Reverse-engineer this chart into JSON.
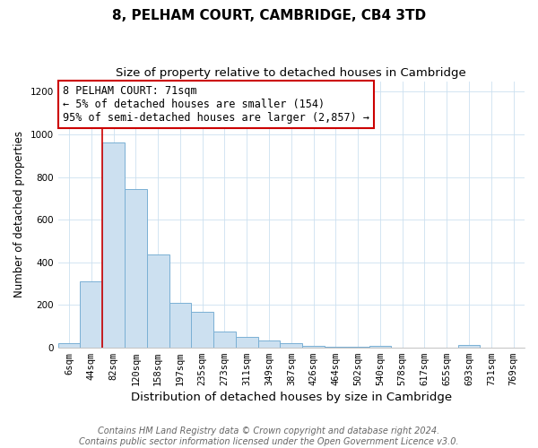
{
  "title": "8, PELHAM COURT, CAMBRIDGE, CB4 3TD",
  "subtitle": "Size of property relative to detached houses in Cambridge",
  "xlabel": "Distribution of detached houses by size in Cambridge",
  "ylabel": "Number of detached properties",
  "bar_labels": [
    "6sqm",
    "44sqm",
    "82sqm",
    "120sqm",
    "158sqm",
    "197sqm",
    "235sqm",
    "273sqm",
    "311sqm",
    "349sqm",
    "387sqm",
    "426sqm",
    "464sqm",
    "502sqm",
    "540sqm",
    "578sqm",
    "617sqm",
    "655sqm",
    "693sqm",
    "731sqm",
    "769sqm"
  ],
  "bar_heights": [
    20,
    310,
    960,
    745,
    435,
    210,
    165,
    75,
    48,
    33,
    18,
    8,
    5,
    5,
    8,
    0,
    0,
    0,
    10,
    0,
    0
  ],
  "bar_color": "#cce0f0",
  "bar_edgecolor": "#7ab0d4",
  "vline_color": "#cc0000",
  "annotation_title": "8 PELHAM COURT: 71sqm",
  "annotation_line1": "← 5% of detached houses are smaller (154)",
  "annotation_line2": "95% of semi-detached houses are larger (2,857) →",
  "annotation_box_edgecolor": "#cc0000",
  "ylim": [
    0,
    1250
  ],
  "footer1": "Contains HM Land Registry data © Crown copyright and database right 2024.",
  "footer2": "Contains public sector information licensed under the Open Government Licence v3.0.",
  "title_fontsize": 11,
  "subtitle_fontsize": 9.5,
  "xlabel_fontsize": 9.5,
  "ylabel_fontsize": 8.5,
  "tick_fontsize": 7.5,
  "annotation_fontsize": 8.5,
  "footer_fontsize": 7
}
